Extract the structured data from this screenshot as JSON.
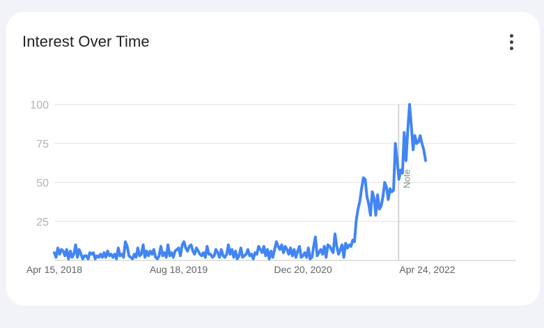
{
  "card": {
    "title": "Interest Over Time",
    "menu_icon": "more-vert-icon"
  },
  "chart_data": {
    "type": "line",
    "title": "Interest Over Time",
    "xlabel": "",
    "ylabel": "",
    "ylim": [
      0,
      100
    ],
    "yticks": [
      25,
      50,
      75,
      100
    ],
    "x_tick_labels": [
      "Apr 15, 2018",
      "Aug 18, 2019",
      "Dec 20, 2020",
      "Apr 24, 2022"
    ],
    "x_range": [
      "2018-04-15",
      "2023-04-09"
    ],
    "grid": true,
    "color": "#4285f4",
    "annotation": {
      "date": "2022-01-01",
      "label": "Note"
    },
    "series": [
      {
        "name": "",
        "interval": "weekly",
        "start": "2018-04-15",
        "values": [
          5,
          2,
          8,
          4,
          7,
          6,
          3,
          7,
          1,
          6,
          2,
          4,
          10,
          2,
          7,
          4,
          1,
          3,
          3,
          1,
          5,
          4,
          5,
          1,
          3,
          2,
          4,
          2,
          5,
          2,
          6,
          3,
          4,
          2,
          4,
          1,
          8,
          3,
          4,
          2,
          12,
          9,
          3,
          2,
          1,
          4,
          2,
          8,
          3,
          4,
          10,
          2,
          6,
          3,
          6,
          4,
          7,
          2,
          1,
          3,
          9,
          3,
          5,
          2,
          10,
          3,
          5,
          2,
          6,
          7,
          8,
          3,
          10,
          12,
          8,
          6,
          9,
          10,
          6,
          4,
          8,
          6,
          4,
          3,
          5,
          2,
          9,
          4,
          4,
          2,
          3,
          7,
          5,
          2,
          7,
          3,
          2,
          4,
          10,
          4,
          7,
          2,
          6,
          1,
          3,
          8,
          2,
          3,
          4,
          7,
          3,
          4,
          1,
          5,
          4,
          9,
          7,
          5,
          9,
          3,
          7,
          1,
          6,
          2,
          7,
          12,
          9,
          7,
          10,
          5,
          9,
          7,
          4,
          8,
          3,
          7,
          2,
          6,
          9,
          2,
          3,
          5,
          2,
          8,
          1,
          2,
          9,
          15,
          3,
          5,
          7,
          4,
          9,
          2,
          10,
          9,
          7,
          5,
          17,
          9,
          4,
          7,
          10,
          2,
          11,
          8,
          10,
          9,
          13,
          12,
          26,
          33,
          38,
          46,
          53,
          52,
          41,
          36,
          29,
          44,
          40,
          29,
          42,
          33,
          35,
          41,
          50,
          47,
          39,
          46,
          44,
          45,
          75,
          64,
          52,
          58,
          56,
          82,
          64,
          84,
          100,
          86,
          71,
          80,
          75,
          76,
          80,
          75,
          71,
          64
        ]
      }
    ]
  }
}
